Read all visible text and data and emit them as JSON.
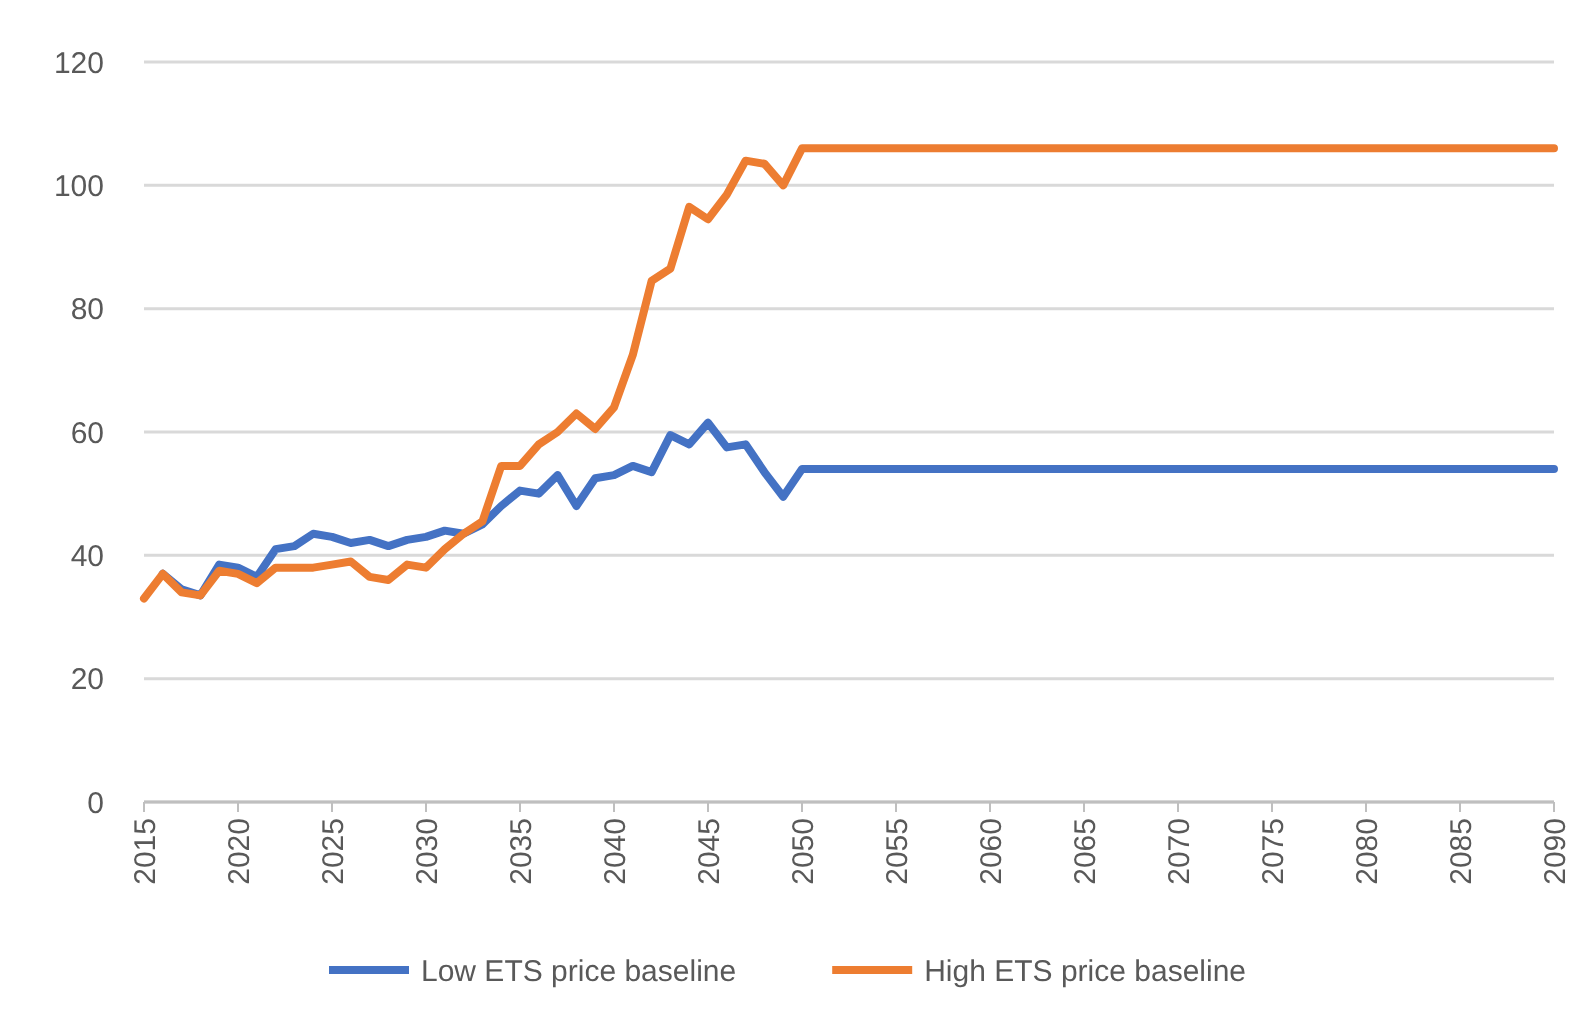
{
  "chart_data": {
    "type": "line",
    "x": [
      2015,
      2016,
      2017,
      2018,
      2019,
      2020,
      2021,
      2022,
      2023,
      2024,
      2025,
      2026,
      2027,
      2028,
      2029,
      2030,
      2031,
      2032,
      2033,
      2034,
      2035,
      2036,
      2037,
      2038,
      2039,
      2040,
      2041,
      2042,
      2043,
      2044,
      2045,
      2046,
      2047,
      2048,
      2049,
      2050,
      2090
    ],
    "series": [
      {
        "name": "Low ETS price baseline",
        "color": "#4472c4",
        "values": [
          null,
          37,
          34.5,
          33.5,
          38.5,
          38,
          36.5,
          41,
          41.5,
          43.5,
          43,
          42,
          42.5,
          41.5,
          42.5,
          43,
          44,
          43.5,
          45,
          48,
          50.5,
          50,
          53,
          48,
          52.5,
          53,
          54.5,
          53.5,
          59.5,
          58,
          61.5,
          57.5,
          58,
          53.5,
          49.5,
          54,
          54
        ]
      },
      {
        "name": "High ETS price baseline",
        "color": "#ed7d31",
        "values": [
          33,
          37,
          34,
          33.5,
          37.5,
          37,
          35.5,
          38,
          38,
          38,
          38.5,
          39,
          36.5,
          36,
          38.5,
          38,
          41,
          43.5,
          45.5,
          54.5,
          54.5,
          58,
          60,
          63,
          60.5,
          64,
          72.5,
          84.5,
          86.5,
          96.5,
          94.5,
          98.5,
          104,
          103.5,
          100,
          106,
          106
        ]
      }
    ],
    "xlim": [
      2015,
      2090
    ],
    "xticks": [
      2015,
      2020,
      2025,
      2030,
      2035,
      2040,
      2045,
      2050,
      2055,
      2060,
      2065,
      2070,
      2075,
      2080,
      2085,
      2090
    ],
    "ylim": [
      0,
      120
    ],
    "yticks": [
      0,
      20,
      40,
      60,
      80,
      100,
      120
    ],
    "grid": "y",
    "legend": "bottom",
    "marker": "none",
    "line_style": "solid"
  }
}
